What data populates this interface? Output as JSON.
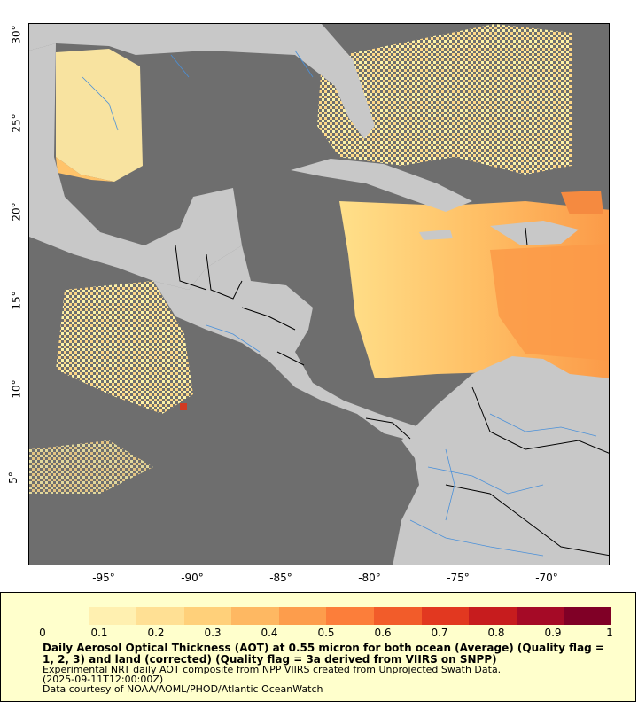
{
  "map": {
    "lat_labels": [
      "30°",
      "25°",
      "20°",
      "15°",
      "10°",
      "5°"
    ],
    "lon_labels": [
      "-95°",
      "-90°",
      "-85°",
      "-80°",
      "-75°",
      "-70°"
    ],
    "colors": {
      "ocean": "#6e6e6e",
      "land": "#c8c8c8",
      "rivers": "#4a90d9",
      "borders": "#000000"
    }
  },
  "legend": {
    "ticks": [
      "0",
      "0.1",
      "0.2",
      "0.3",
      "0.4",
      "0.5",
      "0.6",
      "0.7",
      "0.8",
      "0.9",
      "1"
    ],
    "colorbar_colors": [
      "#ffffcc",
      "#fff0b0",
      "#ffe094",
      "#ffd07a",
      "#feb862",
      "#fd9d4c",
      "#fc7e3a",
      "#f25c2a",
      "#e23820",
      "#c71c1e",
      "#a50a26",
      "#800026"
    ],
    "title": "Daily Aerosol Optical Thickness (AOT) at 0.55 micron for both ocean (Average) (Quality flag = 1, 2, 3) and land (corrected) (Quality flag = 3a derived from VIIRS on SNPP)",
    "line1": "Experimental NRT daily AOT composite from NPP VIIRS created from Unprojected Swath Data.",
    "line2": "(2025-09-11T12:00:00Z)",
    "line3": "Data courtesy of NOAA/AOML/PHOD/Atlantic OceanWatch"
  }
}
